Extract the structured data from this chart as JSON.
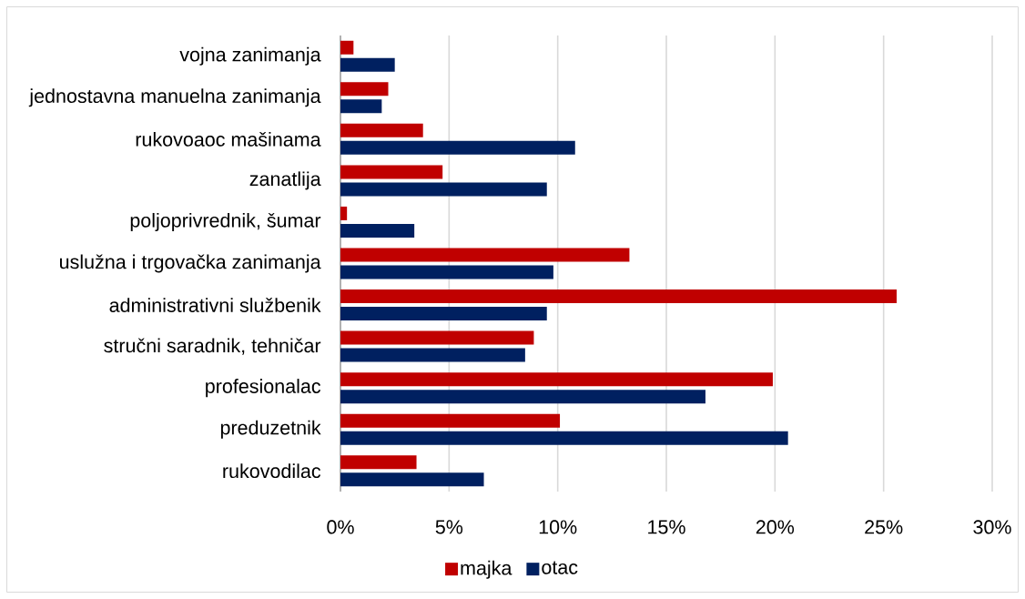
{
  "chart_data": {
    "type": "bar",
    "orientation": "horizontal",
    "categories": [
      "vojna zanimanja",
      "jednostavna manuelna zanimanja",
      "rukovoaoc mašinama",
      "zanatlija",
      "poljoprivrednik, šumar",
      "uslužna i trgovačka zanimanja",
      "administrativni službenik",
      "stručni saradnik, tehničar",
      "profesionalac",
      "preduzetnik",
      "rukovodilac"
    ],
    "series": [
      {
        "name": "majka",
        "color": "#c00000",
        "values": [
          0.6,
          2.2,
          3.8,
          4.7,
          0.3,
          13.3,
          25.6,
          8.9,
          19.9,
          10.1,
          3.5
        ]
      },
      {
        "name": "otac",
        "color": "#002060",
        "values": [
          2.5,
          1.9,
          10.8,
          9.5,
          3.4,
          9.8,
          9.5,
          8.5,
          16.8,
          20.6,
          6.6
        ]
      }
    ],
    "xlim": [
      0,
      30
    ],
    "xticks": [
      {
        "value": 0,
        "label": "0%"
      },
      {
        "value": 5,
        "label": "5%"
      },
      {
        "value": 10,
        "label": "10%"
      },
      {
        "value": 15,
        "label": "15%"
      },
      {
        "value": 20,
        "label": "20%"
      },
      {
        "value": 25,
        "label": "25%"
      },
      {
        "value": 30,
        "label": "30%"
      }
    ],
    "grid": "x",
    "legend": "bottom"
  }
}
